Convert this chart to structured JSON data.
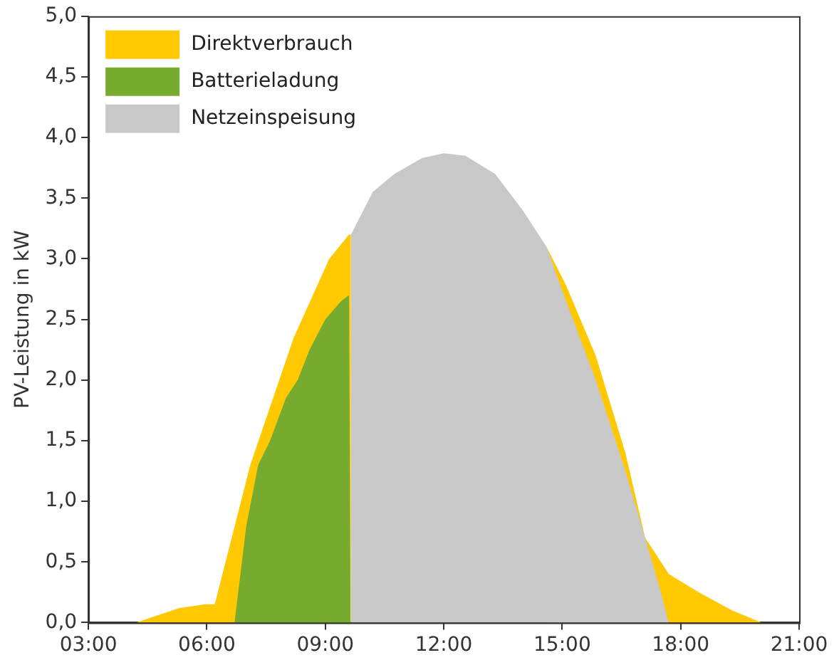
{
  "chart_data": {
    "type": "area",
    "ylabel": "PV-Leistung in kW",
    "xlim": [
      3,
      21
    ],
    "xticks": [
      {
        "value": 3,
        "label": "03:00"
      },
      {
        "value": 6,
        "label": "06:00"
      },
      {
        "value": 9,
        "label": "09:00"
      },
      {
        "value": 12,
        "label": "12:00"
      },
      {
        "value": 15,
        "label": "15:00"
      },
      {
        "value": 18,
        "label": "18:00"
      },
      {
        "value": 21,
        "label": "21:00"
      }
    ],
    "ylim": [
      0,
      5
    ],
    "yticks": [
      {
        "value": 0,
        "label": "0,0"
      },
      {
        "value": 0.5,
        "label": "0,5"
      },
      {
        "value": 1,
        "label": "1,0"
      },
      {
        "value": 1.5,
        "label": "1,5"
      },
      {
        "value": 2,
        "label": "2,0"
      },
      {
        "value": 2.5,
        "label": "2,5"
      },
      {
        "value": 3,
        "label": "3,0"
      },
      {
        "value": 3.5,
        "label": "3,5"
      },
      {
        "value": 4,
        "label": "4,0"
      },
      {
        "value": 4.5,
        "label": "4,5"
      },
      {
        "value": 5,
        "label": "5,0"
      }
    ],
    "grid": false,
    "legend": "top left",
    "series": [
      {
        "name": "Direktverbrauch",
        "color": "#ffc800",
        "x": [
          4.2,
          5.3,
          5.95,
          6.2,
          7.1,
          8.2,
          9.1,
          9.6,
          9.65,
          10.2,
          10.75,
          11.45,
          12.0,
          12.55,
          13.3,
          14.0,
          14.6,
          15.1,
          15.85,
          16.6,
          17.1,
          17.7,
          18.4,
          19.3,
          20.05
        ],
        "values": [
          0,
          0.12,
          0.15,
          0.15,
          1.3,
          2.35,
          3.0,
          3.2,
          3.2,
          null,
          null,
          null,
          null,
          null,
          null,
          null,
          3.1,
          2.78,
          2.2,
          1.4,
          0.7,
          0.4,
          0.26,
          0.1,
          0
        ]
      },
      {
        "name": "Batterieladung",
        "color": "#76ab2f",
        "x": [
          6.7,
          7.0,
          7.3,
          7.6,
          8.0,
          8.3,
          8.6,
          9.0,
          9.4,
          9.6,
          9.64
        ],
        "values": [
          0,
          0.8,
          1.3,
          1.5,
          1.85,
          2.0,
          2.25,
          2.5,
          2.65,
          2.7,
          0
        ]
      },
      {
        "name": "Netzeinspeisung",
        "color": "#c8c8c8",
        "x": [
          9.64,
          9.65,
          10.2,
          10.75,
          11.45,
          12.0,
          12.55,
          13.3,
          14.0,
          14.6,
          15.1,
          15.85,
          16.6,
          17.1,
          17.5,
          17.7
        ],
        "values": [
          0,
          3.2,
          3.55,
          3.7,
          3.83,
          3.87,
          3.85,
          3.7,
          3.4,
          3.1,
          2.65,
          2.0,
          1.25,
          0.7,
          0.25,
          0
        ]
      }
    ]
  }
}
